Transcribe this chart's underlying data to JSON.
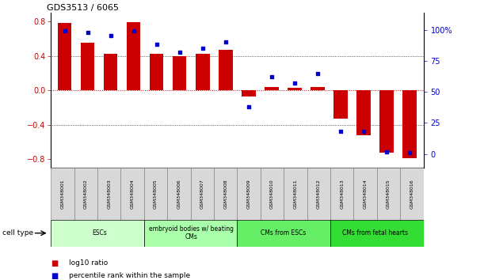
{
  "title": "GDS3513 / 6065",
  "samples": [
    "GSM348001",
    "GSM348002",
    "GSM348003",
    "GSM348004",
    "GSM348005",
    "GSM348006",
    "GSM348007",
    "GSM348008",
    "GSM348009",
    "GSM348010",
    "GSM348011",
    "GSM348012",
    "GSM348013",
    "GSM348014",
    "GSM348015",
    "GSM348016"
  ],
  "log10_ratio": [
    0.78,
    0.55,
    0.42,
    0.79,
    0.42,
    0.4,
    0.42,
    0.47,
    -0.07,
    0.04,
    0.03,
    0.04,
    -0.33,
    -0.52,
    -0.72,
    -0.79
  ],
  "percentile_rank": [
    99,
    98,
    95,
    99,
    88,
    82,
    85,
    90,
    38,
    62,
    57,
    65,
    18,
    18,
    2,
    1
  ],
  "bar_color": "#cc0000",
  "dot_color": "#0000cc",
  "ylim_left": [
    -0.9,
    0.9
  ],
  "ylim_right": [
    -11.25,
    113.75
  ],
  "yticks_left": [
    -0.8,
    -0.4,
    0.0,
    0.4,
    0.8
  ],
  "yticks_right": [
    0,
    25,
    50,
    75,
    100
  ],
  "ytick_labels_right": [
    "0",
    "25",
    "50",
    "75",
    "100%"
  ],
  "hlines": [
    -0.4,
    0.0,
    0.4
  ],
  "cell_groups": [
    {
      "label": "ESCs",
      "start": 0,
      "end": 3,
      "color": "#ccffcc"
    },
    {
      "label": "embryoid bodies w/ beating\nCMs",
      "start": 4,
      "end": 7,
      "color": "#aaffaa"
    },
    {
      "label": "CMs from ESCs",
      "start": 8,
      "end": 11,
      "color": "#66ee66"
    },
    {
      "label": "CMs from fetal hearts",
      "start": 12,
      "end": 15,
      "color": "#33dd33"
    }
  ],
  "legend_items": [
    {
      "label": "log10 ratio",
      "color": "#cc0000"
    },
    {
      "label": "percentile rank within the sample",
      "color": "#0000cc"
    }
  ],
  "cell_type_label": "cell type",
  "background_color": "#ffffff",
  "bar_width": 0.6
}
